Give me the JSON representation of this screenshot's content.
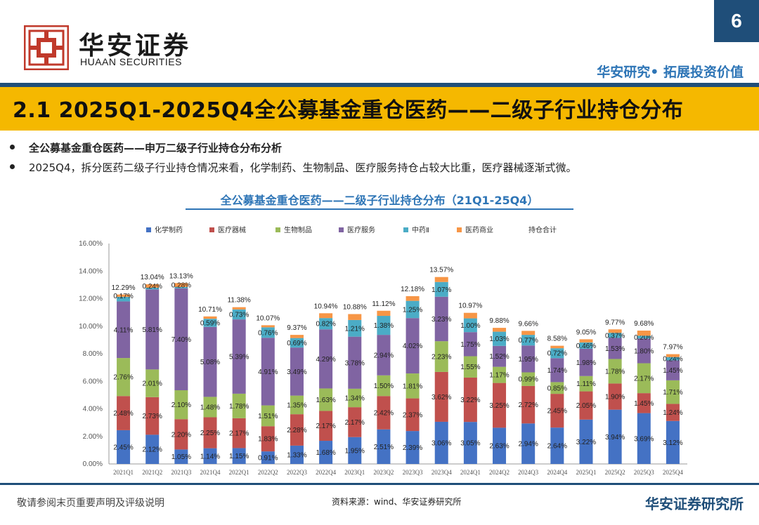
{
  "header": {
    "brand_cn": "华安证券",
    "brand_en": "HUAAN SECURITIES",
    "page_number": "6",
    "slogan": "华安研究• 拓展投资价值",
    "logo_icon": "huaan-logo-icon",
    "brand_color": "#c0392b",
    "accent_color": "#1f4e79"
  },
  "title": "2.1 2025Q1-2025Q4全公募基金重仓医药——二级子行业持仓分布",
  "bullets": [
    "全公募基金重仓医药——申万二级子行业持仓分布分析",
    "2025Q4，拆分医药二级子行业持仓情况来看，化学制药、生物制品、医疗服务持仓占较大比重，医疗器械逐渐式微。"
  ],
  "chart_data": {
    "type": "stacked-bar",
    "title": "全公募基金重仓医药——二级子行业持仓分布（21Q1-25Q4）",
    "categories": [
      "2021Q1",
      "2021Q2",
      "2021Q3",
      "2021Q4",
      "2022Q1",
      "2022Q2",
      "2022Q3",
      "2022Q4",
      "2023Q1",
      "2023Q2",
      "2023Q3",
      "2023Q4",
      "2024Q1",
      "2024Q2",
      "2024Q3",
      "2024Q4",
      "2025Q1",
      "2025Q2",
      "2025Q3",
      "2025Q4"
    ],
    "series": [
      {
        "name": "化学制药",
        "color": "#4472c4",
        "values": [
          2.45,
          2.12,
          1.05,
          1.14,
          1.15,
          0.91,
          1.33,
          1.68,
          1.95,
          2.51,
          2.39,
          3.06,
          3.05,
          2.63,
          2.94,
          2.64,
          3.22,
          3.94,
          3.69,
          3.12
        ]
      },
      {
        "name": "医疗器械",
        "color": "#c0504d",
        "values": [
          2.48,
          2.73,
          2.2,
          2.25,
          2.17,
          1.83,
          2.28,
          2.17,
          2.17,
          2.42,
          2.37,
          3.62,
          3.22,
          3.25,
          2.72,
          2.45,
          2.05,
          1.9,
          1.45,
          1.24
        ]
      },
      {
        "name": "生物制品",
        "color": "#9bbb59",
        "values": [
          2.76,
          2.01,
          2.1,
          1.48,
          1.78,
          1.51,
          1.35,
          1.63,
          1.34,
          1.5,
          1.81,
          2.23,
          1.55,
          1.17,
          0.99,
          0.85,
          1.11,
          1.78,
          2.17,
          1.71
        ]
      },
      {
        "name": "医疗服务",
        "color": "#8064a2",
        "values": [
          4.11,
          5.81,
          7.4,
          5.08,
          5.39,
          4.91,
          3.49,
          4.29,
          3.78,
          2.94,
          4.02,
          3.23,
          1.75,
          1.52,
          1.95,
          1.74,
          1.98,
          1.53,
          1.8,
          1.45
        ]
      },
      {
        "name": "中药Ⅱ",
        "color": "#4bacc6",
        "values": [
          0.33,
          0.13,
          0.1,
          0.59,
          0.73,
          0.76,
          0.69,
          0.82,
          1.21,
          1.38,
          1.25,
          1.07,
          1.0,
          1.03,
          0.77,
          0.72,
          0.46,
          0.37,
          0.2,
          0.24
        ]
      },
      {
        "name": "医药商业",
        "color": "#f79646",
        "values": [
          0.17,
          0.24,
          0.28,
          0.17,
          0.16,
          0.15,
          0.23,
          0.35,
          0.43,
          0.37,
          0.34,
          0.36,
          0.4,
          0.28,
          0.29,
          0.18,
          0.23,
          0.25,
          0.37,
          0.21
        ]
      }
    ],
    "totals_label": "持仓合计",
    "totals": [
      12.29,
      13.04,
      13.13,
      10.71,
      11.38,
      10.07,
      9.37,
      10.94,
      10.88,
      11.12,
      12.18,
      13.57,
      10.97,
      9.88,
      9.66,
      8.58,
      9.05,
      9.77,
      9.68,
      7.97
    ],
    "shown_labels": [
      [
        "2.45%",
        "2.48%",
        "2.76%",
        "4.11%",
        "",
        "0.17%"
      ],
      [
        "2.12%",
        "2.73%",
        "2.01%",
        "5.81%",
        "",
        "0.24%"
      ],
      [
        "1.05%",
        "2.20%",
        "2.10%",
        "7.40%",
        "",
        "0.28%"
      ],
      [
        "1.14%",
        "2.25%",
        "1.48%",
        "5.08%",
        "0.59%",
        ""
      ],
      [
        "1.15%",
        "2.17%",
        "1.78%",
        "5.39%",
        "0.73%",
        ""
      ],
      [
        "0.91%",
        "1.83%",
        "1.51%",
        "4.91%",
        "0.76%",
        ""
      ],
      [
        "1.33%",
        "2.28%",
        "1.35%",
        "3.49%",
        "0.69%",
        ""
      ],
      [
        "1.68%",
        "2.17%",
        "1.63%",
        "4.29%",
        "0.82%",
        ""
      ],
      [
        "1.95%",
        "2.17%",
        "1.34%",
        "3.78%",
        "1.21%",
        ""
      ],
      [
        "2.51%",
        "2.42%",
        "1.50%",
        "2.94%",
        "1.38%",
        ""
      ],
      [
        "2.39%",
        "2.37%",
        "1.81%",
        "4.02%",
        "1.25%",
        ""
      ],
      [
        "3.06%",
        "3.62%",
        "2.23%",
        "3.23%",
        "1.07%",
        ""
      ],
      [
        "3.05%",
        "3.22%",
        "1.55%",
        "1.75%",
        "1.00%",
        ""
      ],
      [
        "2.63%",
        "3.25%",
        "1.17%",
        "1.52%",
        "1.03%",
        ""
      ],
      [
        "2.94%",
        "2.72%",
        "0.99%",
        "1.95%",
        "0.77%",
        ""
      ],
      [
        "2.64%",
        "2.45%",
        "0.85%",
        "1.74%",
        "0.72%",
        ""
      ],
      [
        "3.22%",
        "2.05%",
        "1.11%",
        "1.98%",
        "0.46%",
        ""
      ],
      [
        "3.94%",
        "1.90%",
        "1.78%",
        "1.53%",
        "0.37%",
        ""
      ],
      [
        "3.69%",
        "1.45%",
        "2.17%",
        "1.80%",
        "0.20%",
        ""
      ],
      [
        "3.12%",
        "1.24%",
        "1.71%",
        "1.45%",
        "0.24%",
        ""
      ]
    ],
    "y_ticks": [
      "0.00%",
      "2.00%",
      "4.00%",
      "6.00%",
      "8.00%",
      "10.00%",
      "12.00%",
      "14.00%",
      "16.00%"
    ],
    "ylim": [
      0,
      16
    ],
    "legend_position": "top"
  },
  "footer": {
    "disclaimer": "敬请参阅末页重要声明及评级说明",
    "source": "资料来源：wind、华安证券研究所",
    "institute": "华安证券研究所"
  }
}
